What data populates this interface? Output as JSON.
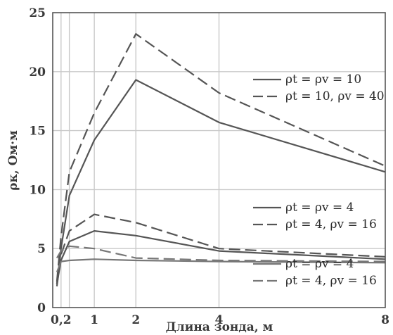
{
  "chart_data": {
    "type": "line",
    "xlabel": "Длина зонда, м",
    "ylabel": "ρк, Ом·м",
    "xlim": [
      0,
      8
    ],
    "ylim": [
      0,
      25
    ],
    "x_ticks": [
      {
        "value": 0.2,
        "label": "0,2"
      },
      {
        "value": 1,
        "label": "1"
      },
      {
        "value": 2,
        "label": "2"
      },
      {
        "value": 4,
        "label": "4"
      },
      {
        "value": 8,
        "label": "8"
      }
    ],
    "y_ticks": [
      {
        "value": 0,
        "label": "0"
      },
      {
        "value": 5,
        "label": "5"
      },
      {
        "value": 10,
        "label": "10"
      },
      {
        "value": 15,
        "label": "15"
      },
      {
        "value": 20,
        "label": "20"
      },
      {
        "value": 25,
        "label": "25"
      }
    ],
    "x_grid": [
      0.2,
      0.4,
      1,
      2,
      4
    ],
    "y_grid": [
      5,
      10,
      15,
      20
    ],
    "grid": true,
    "series": [
      {
        "name": "ρt = ρv = 10",
        "style": "solid",
        "color": "#555555",
        "x": [
          0.1,
          0.2,
          0.4,
          1,
          2,
          4,
          8
        ],
        "y": [
          2.0,
          5.0,
          9.5,
          14.2,
          19.3,
          15.7,
          11.5
        ]
      },
      {
        "name": "ρt = 10, ρv = 40",
        "style": "dashed",
        "color": "#555555",
        "x": [
          0.1,
          0.2,
          0.4,
          1,
          2,
          4,
          8
        ],
        "y": [
          2.2,
          6.0,
          11.5,
          16.5,
          23.2,
          18.2,
          12.0
        ]
      },
      {
        "name": "ρt = ρv = 4",
        "style": "solid",
        "color": "#555555",
        "x": [
          0.1,
          0.2,
          0.4,
          1,
          2,
          4,
          8
        ],
        "y": [
          2.0,
          4.0,
          5.6,
          6.5,
          6.1,
          4.8,
          4.1
        ]
      },
      {
        "name": "ρt = 4, ρv = 16",
        "style": "dashed",
        "color": "#555555",
        "x": [
          0.1,
          0.2,
          0.4,
          1,
          2,
          4,
          8
        ],
        "y": [
          1.8,
          4.5,
          6.5,
          7.9,
          7.2,
          5.0,
          4.3
        ]
      },
      {
        "name": "ρt = ρv = 4",
        "style": "solid",
        "color": "#777777",
        "x": [
          0.1,
          0.2,
          0.4,
          1,
          2,
          4,
          8
        ],
        "y": [
          3.0,
          3.9,
          4.0,
          4.1,
          4.0,
          3.9,
          3.8
        ]
      },
      {
        "name": "ρt = 4, ρv = 16",
        "style": "dashed",
        "color": "#777777",
        "x": [
          0.1,
          0.2,
          0.4,
          1,
          2,
          4,
          8
        ],
        "y": [
          4.2,
          4.8,
          5.2,
          5.0,
          4.2,
          4.0,
          3.9
        ]
      }
    ],
    "legends": [
      {
        "placement": "upper-right",
        "entries": [
          0,
          1
        ]
      },
      {
        "placement": "middle-right",
        "entries": [
          2,
          3
        ]
      },
      {
        "placement": "lower-right",
        "entries": [
          4,
          5
        ]
      }
    ]
  }
}
